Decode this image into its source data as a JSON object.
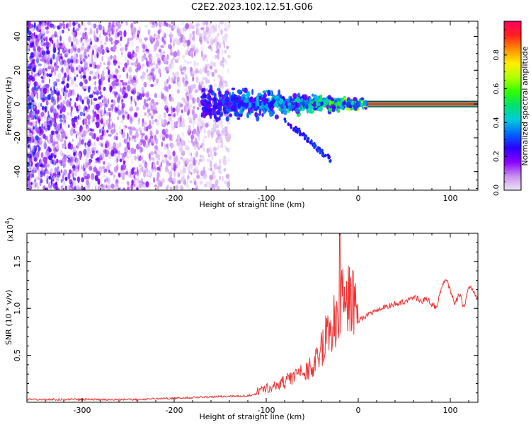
{
  "chart_data": [
    {
      "type": "heatmap",
      "title": "C2E2.2023.102.12.51.G06",
      "xlabel": "Height of straight line (km)",
      "ylabel": "Frequency (Hz)",
      "xlim": [
        -360,
        130
      ],
      "ylim": [
        -51,
        49
      ],
      "xticks": [
        -300,
        -200,
        -100,
        0,
        100
      ],
      "xtick_labels": [
        "-300",
        "-200",
        "-100",
        "0",
        "100"
      ],
      "yticks": [
        -40,
        -20,
        0,
        20,
        40
      ],
      "ytick_labels": [
        "-40",
        "-20",
        "0",
        "20",
        "40"
      ],
      "colorbar": {
        "label": "Normalized spectral amplitude",
        "range": [
          0,
          1
        ],
        "ticks": [
          0.0,
          0.2,
          0.4,
          0.6,
          0.8
        ],
        "tick_labels": [
          "0.0",
          "0.2",
          "0.4",
          "0.6",
          "0.8"
        ],
        "colors": [
          "#f0e4f8",
          "#c790ee",
          "#8a00ff",
          "#2a00ff",
          "#0066ff",
          "#00ccdd",
          "#00e070",
          "#30ff00",
          "#b0ff00",
          "#ffee00",
          "#ff9000",
          "#ff2020",
          "#ff0060"
        ]
      },
      "features": {
        "noise_band_end_x": -150,
        "trace_band": {
          "x_start": -170,
          "x_end": 10,
          "center_y": 0
        },
        "descending_branch": [
          [
            -80,
            -10
          ],
          [
            -60,
            -18
          ],
          [
            -45,
            -26
          ],
          [
            -30,
            -33
          ]
        ],
        "constant_line": {
          "x_start": 10,
          "x_end": 130,
          "y": 0
        }
      }
    },
    {
      "type": "line",
      "xlabel": "Height of straight line (km)",
      "ylabel": "SNR (10 * v/v)",
      "multiplier_label": "(x10",
      "multiplier_exp": "4",
      "xlim": [
        -360,
        130
      ],
      "ylim": [
        0,
        1.8
      ],
      "xticks": [
        -300,
        -200,
        -100,
        0,
        100
      ],
      "xtick_labels": [
        "-300",
        "-200",
        "-100",
        "0",
        "100"
      ],
      "yticks": [
        0.5,
        1.0,
        1.5
      ],
      "ytick_labels": [
        "0.5",
        "1.0",
        "1.5"
      ],
      "series": [
        {
          "name": "SNR",
          "color": "#ee3333",
          "x": [
            -360,
            -330,
            -300,
            -270,
            -240,
            -210,
            -180,
            -150,
            -120,
            -110,
            -100,
            -90,
            -80,
            -70,
            -60,
            -50,
            -45,
            -40,
            -35,
            -30,
            -25,
            -20,
            -18,
            -15,
            -10,
            -5,
            0,
            10,
            20,
            30,
            40,
            50,
            55,
            60,
            65,
            70,
            75,
            80,
            85,
            90,
            95,
            100,
            105,
            110,
            115,
            120,
            125,
            130
          ],
          "values": [
            0.03,
            0.03,
            0.03,
            0.03,
            0.03,
            0.04,
            0.05,
            0.06,
            0.07,
            0.09,
            0.12,
            0.14,
            0.17,
            0.2,
            0.24,
            0.3,
            0.37,
            0.45,
            0.55,
            0.62,
            0.7,
            0.78,
            0.82,
            0.84,
            0.85,
            0.86,
            0.87,
            0.93,
            0.98,
            1.02,
            1.05,
            1.07,
            1.1,
            1.12,
            1.1,
            1.08,
            1.1,
            1.05,
            1.0,
            1.2,
            1.33,
            1.2,
            1.05,
            1.15,
            1.0,
            1.25,
            1.18,
            1.1
          ]
        }
      ],
      "spike": {
        "x": -20,
        "peak": 1.8
      }
    }
  ]
}
